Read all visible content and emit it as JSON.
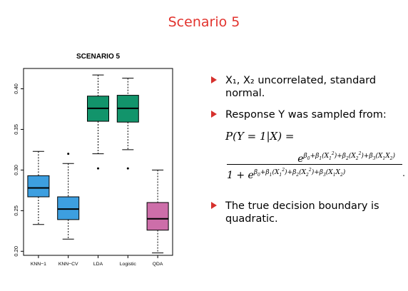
{
  "slide": {
    "title": "Scenario 5",
    "bullets": [
      "X₁, X₂ uncorrelated, standard normal.",
      "Response Y was sampled from:",
      "The true decision boundary is quadratic."
    ],
    "formula": {
      "lhs": "P(Y = 1|X) =",
      "numerator": "eβ0+β1(X12)+β2(X22)+β3(X1X2)",
      "denominator": "1 + eβ0+β1(X12)+β2(X22)+β3(X1X2)",
      "terminator": "."
    }
  },
  "chart_data": {
    "type": "boxplot",
    "title": "SCENARIO 5",
    "xlabel": "",
    "ylabel": "",
    "ylim": [
      0.195,
      0.425
    ],
    "yticks": [
      "0.20",
      "0.25",
      "0.30",
      "0.35",
      "0.40"
    ],
    "categories": [
      "KNN−1",
      "KNN−CV",
      "LDA",
      "Logistic",
      "QDA"
    ],
    "boxes": [
      {
        "name": "KNN−1",
        "min": 0.233,
        "q1": 0.267,
        "median": 0.278,
        "q3": 0.293,
        "max": 0.323,
        "outliers": [],
        "color": "#3d9fe0"
      },
      {
        "name": "KNN−CV",
        "min": 0.215,
        "q1": 0.239,
        "median": 0.252,
        "q3": 0.267,
        "max": 0.308,
        "outliers": [
          0.32
        ],
        "color": "#3d9fe0"
      },
      {
        "name": "LDA",
        "min": 0.32,
        "q1": 0.36,
        "median": 0.376,
        "q3": 0.391,
        "max": 0.417,
        "outliers": [
          0.302
        ],
        "color": "#12946b"
      },
      {
        "name": "Logistic",
        "min": 0.325,
        "q1": 0.359,
        "median": 0.376,
        "q3": 0.392,
        "max": 0.413,
        "outliers": [
          0.302
        ],
        "color": "#12946b"
      },
      {
        "name": "QDA",
        "min": 0.198,
        "q1": 0.226,
        "median": 0.24,
        "q3": 0.26,
        "max": 0.3,
        "outliers": [],
        "color": "#cd6ea9"
      }
    ]
  }
}
